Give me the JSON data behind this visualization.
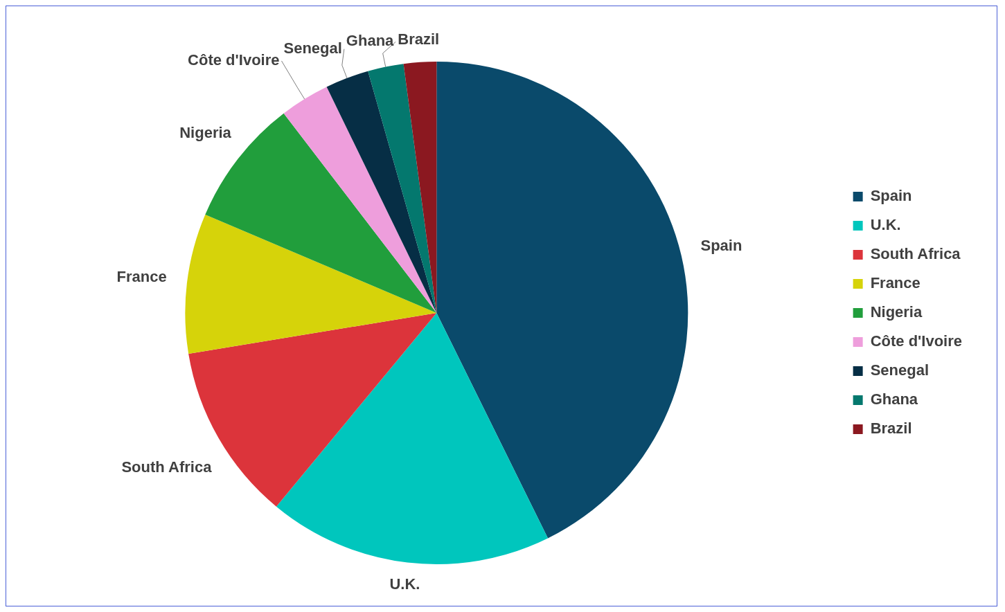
{
  "chart_data": {
    "type": "pie",
    "categories": [
      "Spain",
      "U.K.",
      "South Africa",
      "France",
      "Nigeria",
      "Côte d'Ivoire",
      "Senegal",
      "Ghana",
      "Brazil"
    ],
    "values": [
      42.7,
      18.3,
      11.4,
      9.0,
      8.2,
      3.2,
      2.8,
      2.3,
      2.1
    ],
    "colors": [
      "#0a4a6b",
      "#00c6bd",
      "#dc343b",
      "#d6d30a",
      "#219e3c",
      "#ee9edc",
      "#062e45",
      "#04786e",
      "#8b1820"
    ],
    "legend": "right"
  }
}
